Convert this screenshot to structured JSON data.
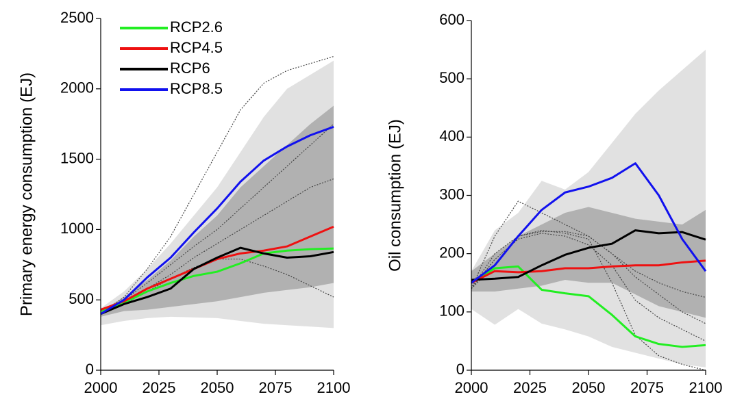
{
  "chart_data": [
    {
      "type": "line",
      "ylabel": "Primary energy consumption (EJ)",
      "legend": "upper left",
      "x": [
        2000,
        2010,
        2020,
        2030,
        2040,
        2050,
        2060,
        2070,
        2080,
        2090,
        2100
      ],
      "xlim": [
        2000,
        2100
      ],
      "xticks": [
        2000,
        2025,
        2050,
        2075,
        2100
      ],
      "ylim": [
        0,
        2500
      ],
      "yticks": [
        0,
        500,
        1000,
        1500,
        2000,
        2500
      ],
      "bands": [
        {
          "color": "#dcdcdc",
          "lower": [
            320,
            350,
            370,
            380,
            375,
            370,
            350,
            330,
            320,
            310,
            300
          ],
          "upper": [
            440,
            560,
            720,
            900,
            1100,
            1300,
            1550,
            1800,
            2000,
            2100,
            2200
          ]
        },
        {
          "color": "#a8a8a8",
          "lower": [
            380,
            420,
            430,
            450,
            470,
            490,
            520,
            550,
            570,
            590,
            620
          ],
          "upper": [
            420,
            520,
            640,
            780,
            950,
            1100,
            1300,
            1450,
            1600,
            1750,
            1880
          ]
        }
      ],
      "dotted": [
        {
          "color": "#444444",
          "values": [
            400,
            520,
            720,
            950,
            1250,
            1550,
            1850,
            2040,
            2130,
            2180,
            2230
          ]
        },
        {
          "color": "#444444",
          "values": [
            400,
            500,
            620,
            750,
            880,
            1000,
            1150,
            1300,
            1450,
            1600,
            1750
          ]
        },
        {
          "color": "#444444",
          "values": [
            400,
            480,
            580,
            680,
            800,
            900,
            1000,
            1100,
            1200,
            1300,
            1360
          ]
        },
        {
          "color": "#444444",
          "values": [
            400,
            470,
            560,
            650,
            730,
            790,
            790,
            740,
            680,
            600,
            520
          ]
        }
      ],
      "series": [
        {
          "name": "RCP2.6",
          "color": "#22ee22",
          "values": [
            420,
            480,
            560,
            620,
            670,
            700,
            760,
            830,
            850,
            860,
            865
          ]
        },
        {
          "name": "RCP4.5",
          "color": "#ee1111",
          "values": [
            430,
            490,
            580,
            650,
            720,
            790,
            830,
            850,
            880,
            950,
            1020
          ]
        },
        {
          "name": "RCP6",
          "color": "#000000",
          "values": [
            400,
            470,
            520,
            580,
            720,
            800,
            870,
            830,
            800,
            810,
            840
          ]
        },
        {
          "name": "RCP8.5",
          "color": "#1111ee",
          "values": [
            400,
            500,
            660,
            800,
            980,
            1150,
            1340,
            1490,
            1590,
            1670,
            1730
          ]
        }
      ]
    },
    {
      "type": "line",
      "ylabel": "Oil consumption (EJ)",
      "x": [
        2000,
        2010,
        2020,
        2030,
        2040,
        2050,
        2060,
        2070,
        2080,
        2090,
        2100
      ],
      "xlim": [
        2000,
        2100
      ],
      "xticks": [
        2000,
        2025,
        2050,
        2075,
        2100
      ],
      "ylim": [
        0,
        600
      ],
      "yticks": [
        0,
        100,
        200,
        300,
        400,
        500,
        600
      ],
      "bands": [
        {
          "color": "#dcdcdc",
          "lower": [
            105,
            78,
            105,
            80,
            70,
            58,
            40,
            30,
            20,
            10,
            5
          ],
          "upper": [
            170,
            240,
            270,
            325,
            310,
            340,
            390,
            440,
            480,
            515,
            550
          ]
        },
        {
          "color": "#a8a8a8",
          "lower": [
            135,
            135,
            140,
            145,
            155,
            150,
            150,
            130,
            110,
            100,
            90
          ],
          "upper": [
            170,
            200,
            230,
            250,
            270,
            280,
            270,
            260,
            255,
            250,
            275
          ]
        }
      ],
      "dotted": [
        {
          "color": "#444444",
          "values": [
            140,
            230,
            290,
            270,
            250,
            230,
            200,
            170,
            150,
            135,
            125
          ]
        },
        {
          "color": "#444444",
          "values": [
            140,
            180,
            230,
            240,
            235,
            225,
            150,
            60,
            25,
            10,
            0
          ]
        },
        {
          "color": "#444444",
          "values": [
            140,
            200,
            230,
            238,
            238,
            230,
            200,
            160,
            130,
            100,
            80
          ]
        },
        {
          "color": "#444444",
          "values": [
            140,
            190,
            225,
            235,
            230,
            215,
            180,
            120,
            90,
            70,
            50
          ]
        }
      ],
      "series": [
        {
          "name": "RCP2.6",
          "color": "#22ee22",
          "values": [
            150,
            175,
            178,
            138,
            132,
            127,
            95,
            58,
            45,
            40,
            43
          ]
        },
        {
          "name": "RCP4.5",
          "color": "#ee1111",
          "values": [
            150,
            170,
            168,
            170,
            175,
            175,
            178,
            180,
            180,
            185,
            188
          ]
        },
        {
          "name": "RCP6",
          "color": "#000000",
          "values": [
            155,
            157,
            160,
            180,
            198,
            210,
            217,
            240,
            235,
            237,
            224
          ]
        },
        {
          "name": "RCP8.5",
          "color": "#1111ee",
          "values": [
            150,
            180,
            230,
            275,
            305,
            315,
            330,
            355,
            300,
            225,
            170
          ]
        }
      ]
    }
  ]
}
